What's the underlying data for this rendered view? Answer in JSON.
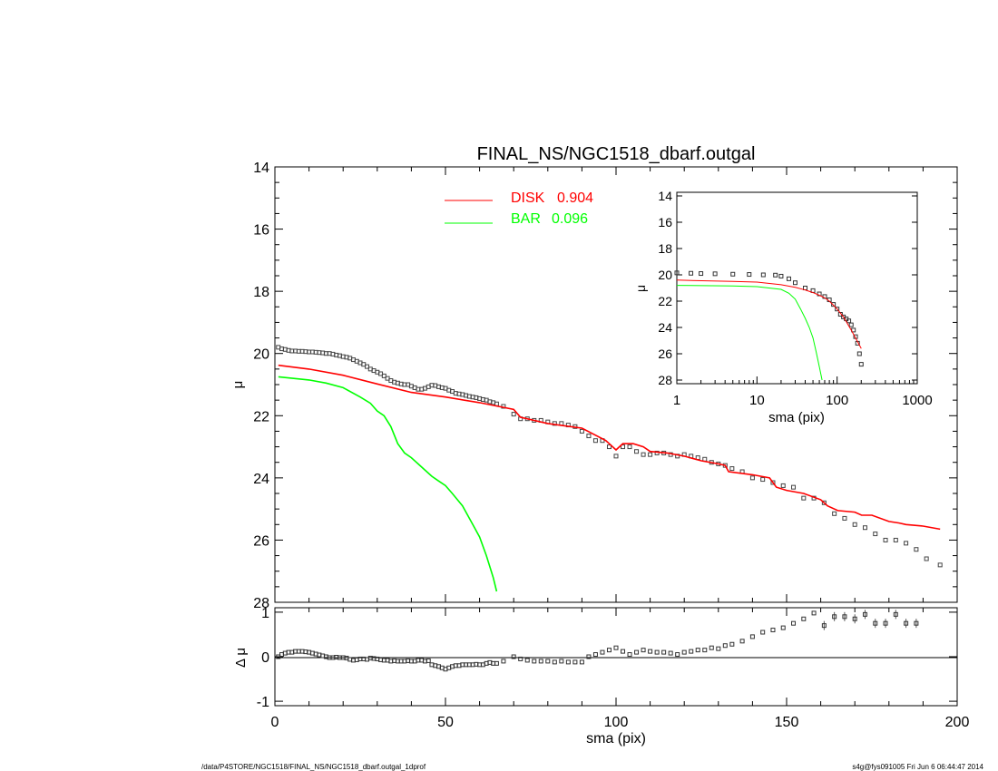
{
  "chart_data": [
    {
      "type": "scatter",
      "title": "FINAL_NS/NGC1518_dbarf.outgal",
      "xlabel": "",
      "ylabel": "μ",
      "xlim": [
        0,
        200
      ],
      "ylim": [
        28,
        14
      ],
      "x_ticks": [
        "0",
        "50",
        "100",
        "150",
        "200"
      ],
      "y_ticks": [
        "14",
        "16",
        "18",
        "20",
        "22",
        "24",
        "26",
        "28"
      ],
      "legend": [
        {
          "label": "DISK",
          "value": "0.904",
          "color": "#ff0000"
        },
        {
          "label": "BAR",
          "value": "0.096",
          "color": "#00ff00"
        }
      ],
      "series": [
        {
          "name": "data",
          "style": "open-squares",
          "x": [
            1,
            2,
            3,
            4,
            5,
            6,
            7,
            8,
            9,
            10,
            11,
            12,
            13,
            14,
            15,
            16,
            17,
            18,
            19,
            20,
            21,
            22,
            23,
            24,
            25,
            26,
            27,
            28,
            29,
            30,
            31,
            32,
            33,
            34,
            35,
            36,
            37,
            38,
            39,
            40,
            41,
            42,
            43,
            44,
            45,
            46,
            47,
            48,
            49,
            50,
            51,
            52,
            53,
            54,
            55,
            56,
            57,
            58,
            59,
            60,
            61,
            62,
            63,
            64,
            65,
            67,
            70,
            72,
            74,
            76,
            78,
            80,
            82,
            84,
            86,
            88,
            90,
            92,
            94,
            96,
            98,
            100,
            102,
            104,
            106,
            108,
            110,
            112,
            114,
            116,
            118,
            120,
            122,
            124,
            126,
            128,
            130,
            132,
            134,
            137,
            140,
            143,
            146,
            149,
            152,
            155,
            158,
            161,
            164,
            167,
            170,
            173,
            176,
            179,
            182,
            185,
            188,
            191,
            195
          ],
          "y": [
            19.8,
            19.85,
            19.87,
            19.9,
            19.92,
            19.92,
            19.93,
            19.93,
            19.94,
            19.95,
            19.95,
            19.96,
            19.97,
            19.98,
            20.0,
            20.0,
            20.02,
            20.05,
            20.07,
            20.1,
            20.12,
            20.15,
            20.2,
            20.25,
            20.3,
            20.35,
            20.42,
            20.5,
            20.55,
            20.6,
            20.65,
            20.72,
            20.8,
            20.87,
            20.92,
            20.95,
            20.98,
            21.0,
            21.0,
            21.05,
            21.1,
            21.15,
            21.15,
            21.12,
            21.07,
            21.02,
            21.03,
            21.07,
            21.1,
            21.12,
            21.18,
            21.22,
            21.28,
            21.3,
            21.32,
            21.35,
            21.38,
            21.4,
            21.42,
            21.45,
            21.48,
            21.5,
            21.55,
            21.58,
            21.62,
            21.7,
            21.95,
            22.1,
            22.1,
            22.15,
            22.15,
            22.2,
            22.25,
            22.25,
            22.3,
            22.35,
            22.5,
            22.65,
            22.8,
            22.8,
            23.0,
            23.3,
            23.0,
            23.0,
            23.15,
            23.25,
            23.25,
            23.2,
            23.2,
            23.25,
            23.3,
            23.25,
            23.3,
            23.35,
            23.4,
            23.5,
            23.55,
            23.6,
            23.7,
            23.8,
            24.0,
            24.05,
            24.15,
            24.25,
            24.3,
            24.65,
            24.65,
            24.8,
            25.15,
            25.3,
            25.5,
            25.6,
            25.8,
            26.0,
            26.0,
            26.1,
            26.3,
            26.6,
            26.8
          ]
        },
        {
          "name": "DISK",
          "style": "line",
          "color": "#ff0000",
          "x": [
            1,
            10,
            20,
            30,
            40,
            50,
            60,
            70,
            72,
            80,
            90,
            97,
            100,
            102,
            105,
            108,
            110,
            115,
            120,
            125,
            130,
            132,
            133,
            140,
            145,
            147,
            150,
            155,
            160,
            162,
            165,
            170,
            172,
            175,
            180,
            183,
            185,
            190,
            195
          ],
          "y": [
            20.38,
            20.5,
            20.7,
            20.98,
            21.25,
            21.4,
            21.58,
            21.8,
            22.05,
            22.25,
            22.4,
            22.8,
            23.1,
            22.9,
            22.9,
            23.0,
            23.15,
            23.2,
            23.3,
            23.45,
            23.55,
            23.6,
            23.8,
            23.9,
            24.0,
            24.3,
            24.4,
            24.5,
            24.7,
            24.9,
            25.05,
            25.1,
            25.2,
            25.2,
            25.4,
            25.45,
            25.5,
            25.55,
            25.65
          ]
        },
        {
          "name": "BAR",
          "style": "line",
          "color": "#00ff00",
          "x": [
            1,
            10,
            15,
            20,
            25,
            28,
            30,
            32,
            34,
            36,
            38,
            40,
            43,
            46,
            48,
            50,
            52,
            55,
            58,
            60,
            62,
            64,
            65
          ],
          "y": [
            20.75,
            20.85,
            20.95,
            21.1,
            21.4,
            21.6,
            21.85,
            22.0,
            22.35,
            22.9,
            23.2,
            23.35,
            23.65,
            23.95,
            24.1,
            24.25,
            24.5,
            24.9,
            25.5,
            25.9,
            26.5,
            27.2,
            27.65
          ]
        }
      ]
    },
    {
      "type": "line",
      "title": "",
      "xlabel": "sma (pix)",
      "ylabel": "μ",
      "x_scale": "log",
      "xlim": [
        1,
        1000
      ],
      "ylim": [
        28,
        14
      ],
      "x_ticks": [
        "1",
        "10",
        "100",
        "1000"
      ],
      "y_ticks": [
        "14",
        "16",
        "18",
        "20",
        "22",
        "24",
        "26",
        "28"
      ],
      "series": [
        {
          "name": "data",
          "style": "open-squares",
          "x": [
            1,
            1.5,
            2,
            3,
            5,
            8,
            12,
            17,
            20,
            25,
            30,
            40,
            50,
            60,
            70,
            80,
            90,
            100,
            110,
            120,
            130,
            140,
            150,
            160,
            170,
            180,
            190,
            200
          ],
          "y": [
            19.85,
            19.88,
            19.9,
            19.92,
            19.95,
            19.97,
            20.0,
            20.02,
            20.1,
            20.3,
            20.6,
            21.0,
            21.2,
            21.45,
            21.65,
            21.9,
            22.25,
            22.6,
            23.0,
            23.2,
            23.35,
            23.5,
            23.8,
            24.2,
            24.7,
            25.2,
            26.0,
            26.8
          ]
        },
        {
          "name": "DISK",
          "style": "line",
          "color": "#ff0000",
          "x": [
            1,
            5,
            10,
            20,
            30,
            40,
            50,
            60,
            70,
            80,
            90,
            100,
            120,
            150,
            200
          ],
          "y": [
            20.4,
            20.5,
            20.55,
            20.75,
            20.95,
            21.15,
            21.35,
            21.55,
            21.75,
            22.0,
            22.3,
            22.6,
            23.2,
            24.2,
            25.6
          ]
        },
        {
          "name": "BAR",
          "style": "line",
          "color": "#00ff00",
          "x": [
            1,
            5,
            10,
            20,
            25,
            30,
            35,
            40,
            45,
            50,
            55,
            60,
            65
          ],
          "y": [
            20.8,
            20.85,
            20.9,
            21.1,
            21.4,
            21.85,
            22.6,
            23.3,
            24.0,
            24.8,
            25.9,
            27.0,
            28.0
          ]
        }
      ]
    },
    {
      "type": "scatter",
      "title": "",
      "xlabel": "sma (pix)",
      "ylabel": "Δ μ",
      "xlim": [
        0,
        200
      ],
      "ylim": [
        -1.1,
        1.1
      ],
      "x_ticks": [
        "0",
        "50",
        "100",
        "150",
        "200"
      ],
      "y_ticks": [
        "1",
        "0",
        "-1"
      ],
      "series": [
        {
          "name": "residual",
          "style": "open-squares",
          "x": [
            1,
            2,
            3,
            4,
            5,
            6,
            7,
            8,
            9,
            10,
            11,
            12,
            13,
            14,
            15,
            16,
            17,
            18,
            19,
            20,
            21,
            22,
            23,
            24,
            25,
            26,
            27,
            28,
            29,
            30,
            31,
            32,
            33,
            34,
            35,
            36,
            37,
            38,
            39,
            40,
            41,
            42,
            43,
            44,
            45,
            46,
            47,
            48,
            49,
            50,
            51,
            52,
            53,
            54,
            55,
            56,
            57,
            58,
            59,
            60,
            61,
            62,
            63,
            64,
            65,
            67,
            70,
            72,
            74,
            76,
            78,
            80,
            82,
            84,
            86,
            88,
            90,
            92,
            94,
            96,
            98,
            100,
            102,
            104,
            106,
            108,
            110,
            112,
            114,
            116,
            118,
            120,
            122,
            124,
            126,
            128,
            130,
            132,
            134,
            137,
            140,
            143,
            146,
            149,
            152,
            155,
            158,
            161,
            164,
            167,
            170,
            173,
            176,
            179,
            182,
            185,
            188
          ],
          "y": [
            0.0,
            0.05,
            0.08,
            0.1,
            0.1,
            0.12,
            0.12,
            0.12,
            0.11,
            0.1,
            0.08,
            0.06,
            0.04,
            0.02,
            0.0,
            -0.02,
            -0.02,
            -0.01,
            -0.02,
            -0.02,
            -0.03,
            -0.06,
            -0.08,
            -0.07,
            -0.05,
            -0.05,
            -0.06,
            -0.03,
            -0.04,
            -0.05,
            -0.07,
            -0.08,
            -0.08,
            -0.1,
            -0.09,
            -0.1,
            -0.1,
            -0.1,
            -0.09,
            -0.1,
            -0.1,
            -0.08,
            -0.08,
            -0.1,
            -0.09,
            -0.18,
            -0.2,
            -0.22,
            -0.25,
            -0.28,
            -0.25,
            -0.22,
            -0.2,
            -0.2,
            -0.18,
            -0.18,
            -0.18,
            -0.18,
            -0.17,
            -0.18,
            -0.18,
            -0.15,
            -0.13,
            -0.15,
            -0.15,
            -0.1,
            0.0,
            -0.05,
            -0.08,
            -0.1,
            -0.1,
            -0.1,
            -0.12,
            -0.1,
            -0.12,
            -0.12,
            -0.12,
            0.0,
            0.05,
            0.1,
            0.15,
            0.2,
            0.12,
            0.05,
            0.1,
            0.15,
            0.12,
            0.1,
            0.1,
            0.08,
            0.05,
            0.1,
            0.12,
            0.15,
            0.15,
            0.2,
            0.18,
            0.25,
            0.28,
            0.35,
            0.45,
            0.55,
            0.6,
            0.65,
            0.75,
            0.85,
            0.98,
            0.7,
            0.9,
            0.9,
            0.85,
            0.95,
            0.75,
            0.75,
            0.95,
            0.75,
            0.75
          ]
        }
      ]
    }
  ],
  "footer": {
    "left": "/data/P4STORE/NGC1518/FINAL_NS/NGC1518_dbarf.outgal_1dprof",
    "right": "s4g@fys091005  Fri Jun  6 06:44:47 2014"
  }
}
